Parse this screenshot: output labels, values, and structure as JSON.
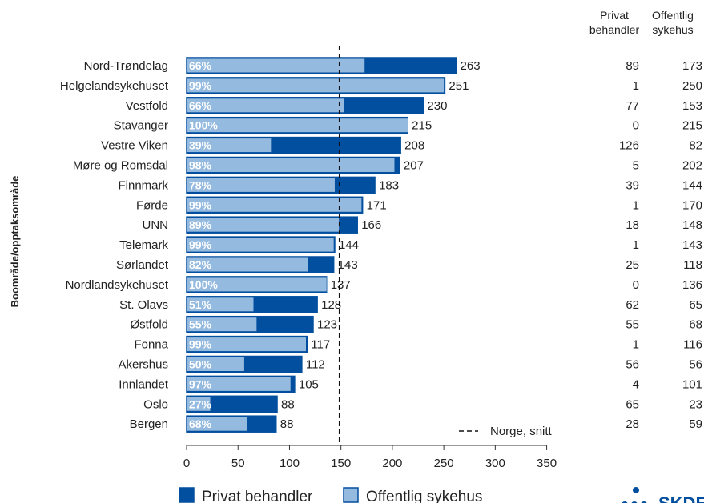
{
  "chart_data": {
    "type": "bar",
    "orientation": "horizontal",
    "stacked": true,
    "ylabel": "Boområde/opptaksområde",
    "xlim": [
      0,
      350
    ],
    "xticks": [
      0,
      50,
      100,
      150,
      200,
      250,
      300,
      350
    ],
    "grid": false,
    "categories": [
      "Nord-Trøndelag",
      "Helgelandsykehuset",
      "Vestfold",
      "Stavanger",
      "Vestre Viken",
      "Møre og Romsdal",
      "Finnmark",
      "Førde",
      "UNN",
      "Telemark",
      "Sørlandet",
      "Nordlandsykehuset",
      "St. Olavs",
      "Østfold",
      "Fonna",
      "Akershus",
      "Innlandet",
      "Oslo",
      "Bergen"
    ],
    "series": [
      {
        "name": "Offentlig sykehus",
        "color": "#95badf",
        "values": [
          173,
          250,
          153,
          215,
          82,
          202,
          144,
          170,
          148,
          143,
          118,
          136,
          65,
          68,
          116,
          56,
          101,
          23,
          59
        ]
      },
      {
        "name": "Privat behandler",
        "color": "#034f9f",
        "values": [
          89,
          1,
          77,
          0,
          126,
          5,
          39,
          1,
          18,
          1,
          25,
          0,
          62,
          55,
          1,
          56,
          4,
          65,
          28
        ]
      }
    ],
    "totals": [
      263,
      251,
      230,
      215,
      208,
      207,
      183,
      171,
      166,
      144,
      143,
      137,
      128,
      123,
      117,
      112,
      105,
      88,
      88
    ],
    "percent_labels": [
      "66%",
      "99%",
      "66%",
      "100%",
      "39%",
      "98%",
      "78%",
      "99%",
      "89%",
      "99%",
      "82%",
      "100%",
      "51%",
      "55%",
      "99%",
      "50%",
      "97%",
      "27%",
      "68%"
    ],
    "reference_line": {
      "label": "Norge, snitt",
      "value": 148.5
    },
    "table": {
      "headers": [
        [
          "Privat",
          "behandler"
        ],
        [
          "Offentlig",
          "sykehus"
        ]
      ],
      "privat": [
        "89",
        "1",
        "77",
        "0",
        "126",
        "5",
        "39",
        "1",
        "18",
        "1",
        "25",
        "0",
        "62",
        "55",
        "1",
        "56",
        "4",
        "65",
        "28"
      ],
      "offentlig": [
        "173",
        "250",
        "153",
        "215",
        "82",
        "202",
        "144",
        "170",
        "148",
        "143",
        "118",
        "136",
        "65",
        "68",
        "116",
        "56",
        "101",
        "23",
        "59"
      ]
    },
    "legend": {
      "position": "bottom-left",
      "items": [
        {
          "label": "Privat behandler",
          "color": "#034f9f"
        },
        {
          "label": "Offentlig sykehus",
          "color": "#95badf"
        }
      ]
    }
  },
  "logo": {
    "text": "SKDE",
    "color": "#034f9f"
  }
}
